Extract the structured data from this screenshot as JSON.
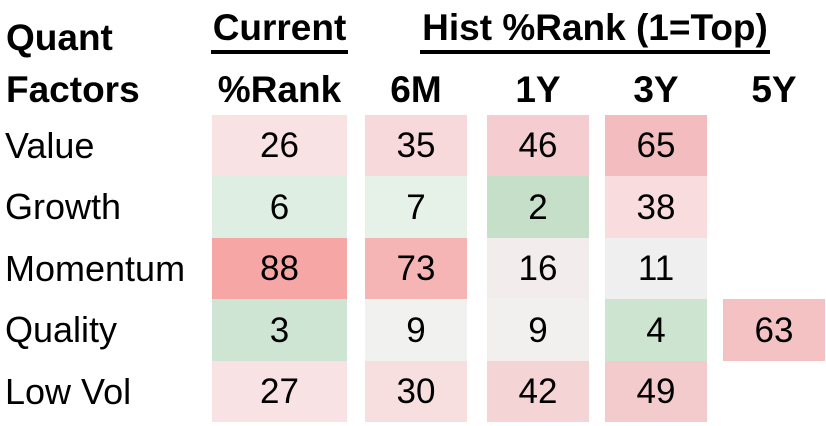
{
  "table": {
    "title_line1": "Quant",
    "title_line2": "Factors",
    "group_headers": {
      "current": "Current",
      "hist": "Hist %Rank (1=Top)"
    },
    "column_headers": [
      "%Rank",
      "6M",
      "1Y",
      "3Y",
      "5Y"
    ],
    "rows": [
      {
        "label": "Value",
        "cells": [
          {
            "v": "26",
            "bg": "#f8e2e4"
          },
          {
            "v": "35",
            "bg": "#f7d9db"
          },
          {
            "v": "46",
            "bg": "#f5ccd0"
          },
          {
            "v": "65",
            "bg": "#f3bdc0"
          },
          {
            "v": "",
            "bg": null
          }
        ]
      },
      {
        "label": "Growth",
        "cells": [
          {
            "v": "6",
            "bg": "#dfeee2"
          },
          {
            "v": "7",
            "bg": "#e6f1e8"
          },
          {
            "v": "2",
            "bg": "#c5dfc9"
          },
          {
            "v": "38",
            "bg": "#f8dcde"
          },
          {
            "v": "",
            "bg": null
          }
        ]
      },
      {
        "label": "Momentum",
        "cells": [
          {
            "v": "88",
            "bg": "#f6a7a5"
          },
          {
            "v": "73",
            "bg": "#f6b5b5"
          },
          {
            "v": "16",
            "bg": "#f3ecec"
          },
          {
            "v": "11",
            "bg": "#f0eff0"
          },
          {
            "v": "",
            "bg": null
          }
        ]
      },
      {
        "label": "Quality",
        "cells": [
          {
            "v": "3",
            "bg": "#cfe5d3"
          },
          {
            "v": "9",
            "bg": "#f1f1ef"
          },
          {
            "v": "9",
            "bg": "#f1f0ee"
          },
          {
            "v": "4",
            "bg": "#cde4d1"
          },
          {
            "v": "63",
            "bg": "#f5c2c4"
          }
        ]
      },
      {
        "label": "Low Vol",
        "cells": [
          {
            "v": "27",
            "bg": "#f8e2e3"
          },
          {
            "v": "30",
            "bg": "#f7dfe0"
          },
          {
            "v": "42",
            "bg": "#f5d4d6"
          },
          {
            "v": "49",
            "bg": "#f4cbcd"
          },
          {
            "v": "",
            "bg": null
          }
        ]
      }
    ]
  },
  "colors": {
    "text": "#000000",
    "background": "#ffffff",
    "heat_low_green": "#c5dfc9",
    "heat_mid_white": "#f1f0ee",
    "heat_high_red": "#f6a7a5"
  },
  "chart_data": {
    "type": "heatmap",
    "title": "Quant Factors Hist %Rank (1=Top)",
    "row_labels": [
      "Value",
      "Growth",
      "Momentum",
      "Quality",
      "Low Vol"
    ],
    "columns": [
      "Current %Rank",
      "6M",
      "1Y",
      "3Y",
      "5Y"
    ],
    "values": [
      [
        26,
        35,
        46,
        65,
        null
      ],
      [
        6,
        7,
        2,
        38,
        null
      ],
      [
        88,
        73,
        16,
        11,
        null
      ],
      [
        3,
        9,
        9,
        4,
        63
      ],
      [
        27,
        30,
        42,
        49,
        null
      ]
    ],
    "legend_position": "none",
    "grid": false,
    "color_scale": "green (rank 1 = top) through white to red (higher rank)"
  }
}
